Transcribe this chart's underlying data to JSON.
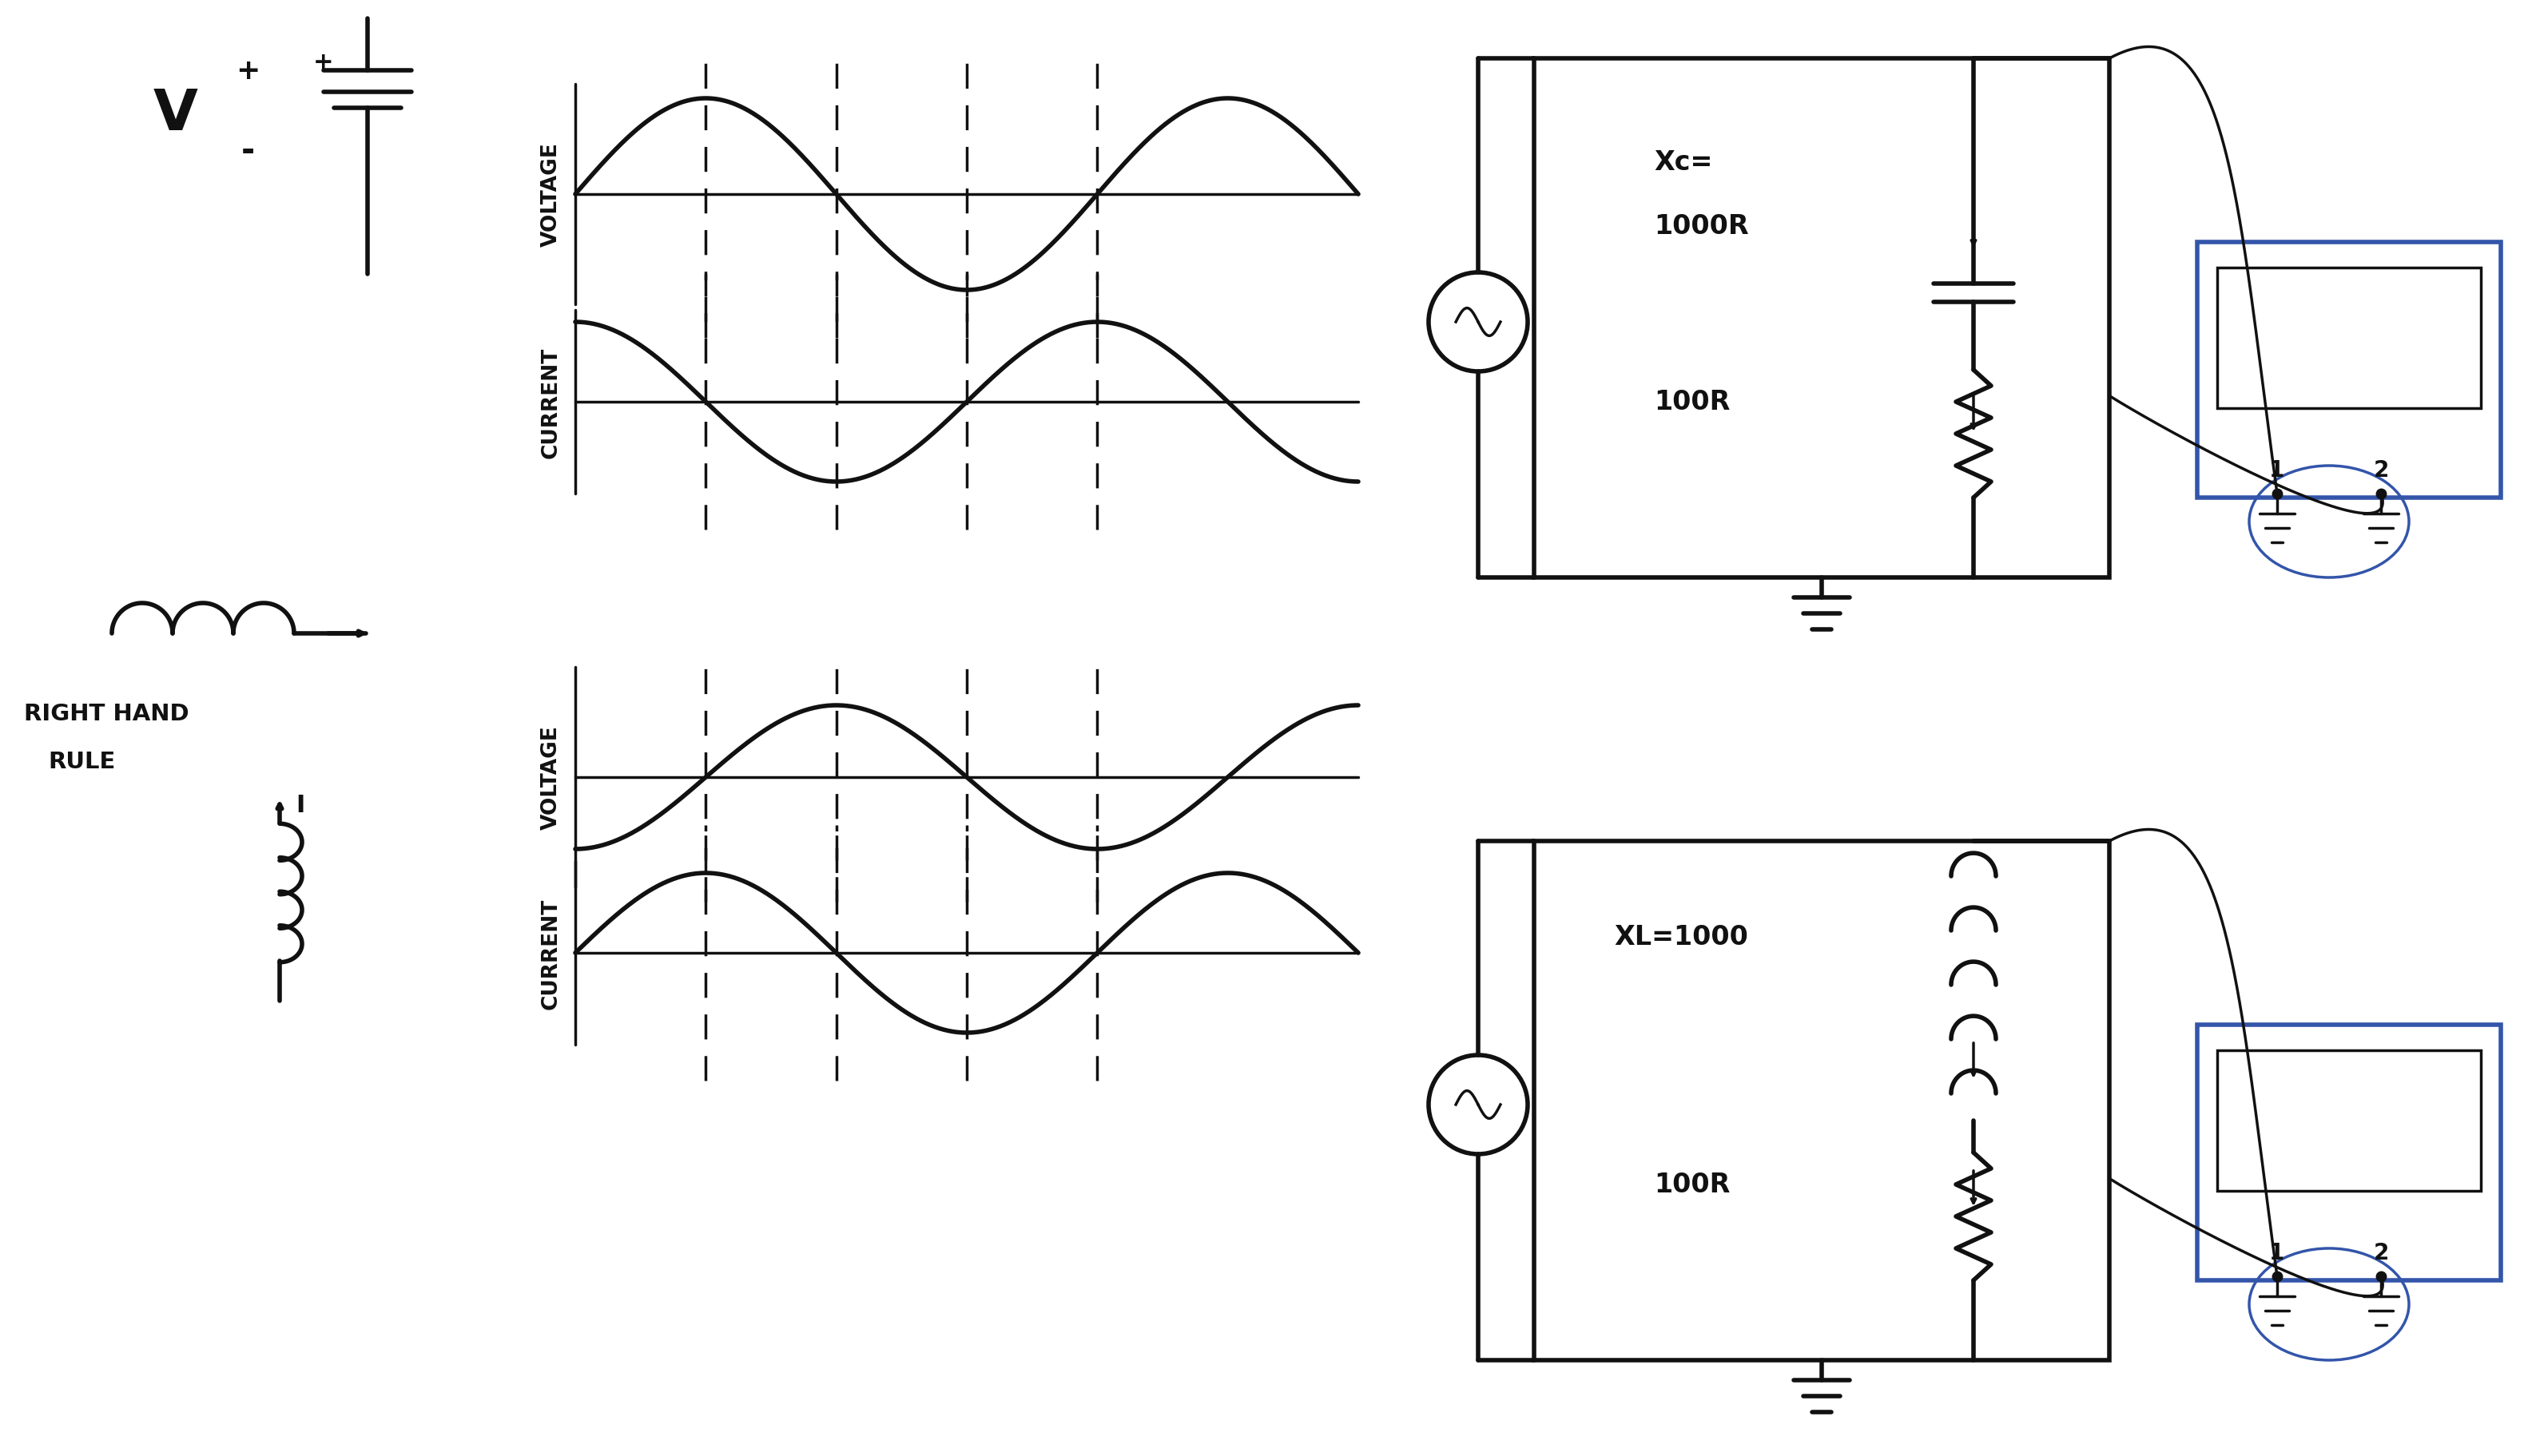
{
  "bg_color": "#ffffff",
  "ink_color": "#111111",
  "blue_color": "#3355aa",
  "cap_phase_shift": 1.5707963,
  "ind_phase_shift": -1.5707963,
  "xc_label": "Xc=",
  "xc_val": "1000R",
  "r_val1": "100R",
  "xl_label": "XL=1000",
  "r_val2": "100R",
  "rhr_text1": "RIGHT HAND",
  "rhr_text2": "RULE"
}
